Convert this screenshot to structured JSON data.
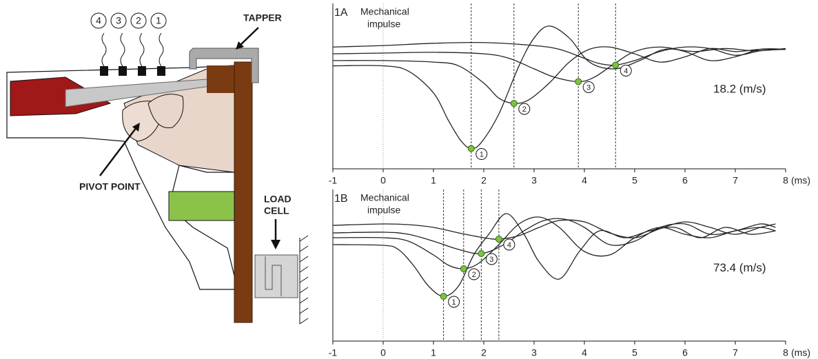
{
  "diagram": {
    "sensors": [
      "4",
      "3",
      "2",
      "1"
    ],
    "tapper": "TAPPER",
    "pivot": "PIVOT POINT",
    "load_cell": [
      "LOAD",
      "CELL"
    ]
  },
  "chart_data": [
    {
      "type": "line",
      "panel": "1A",
      "annotation": [
        "Mechanical",
        "impulse"
      ],
      "speed": "18.2 (m/s)",
      "xlabel": "(ms)",
      "xlim": [
        -1,
        8
      ],
      "xticks": [
        -1,
        0,
        1,
        2,
        3,
        4,
        5,
        6,
        7,
        8
      ],
      "ylim": [
        -1.6,
        0.6
      ],
      "impulse_x": 0,
      "marker_color": "#7dc242",
      "series": [
        {
          "color": "#222222",
          "x": [
            -1,
            0,
            0.5,
            1,
            1.3,
            1.55,
            1.75,
            1.95,
            2.3,
            2.7,
            3,
            3.3,
            3.7,
            4.1,
            4.6,
            5.1,
            5.6,
            6.2,
            6.8,
            7.4,
            8
          ],
          "values": [
            -0.23,
            -0.23,
            -0.3,
            -0.59,
            -0.96,
            -1.23,
            -1.33,
            -1.25,
            -0.87,
            -0.23,
            0.14,
            0.3,
            0.14,
            -0.18,
            -0.27,
            -0.16,
            -0.01,
            -0.04,
            0,
            -0.03,
            0
          ]
        },
        {
          "color": "#222222",
          "x": [
            -1,
            0,
            1,
            1.5,
            2,
            2.3,
            2.6,
            2.9,
            3.3,
            3.7,
            4.1,
            4.5,
            5,
            5.5,
            6,
            6.5,
            7,
            7.5,
            8
          ],
          "values": [
            -0.16,
            -0.16,
            -0.18,
            -0.23,
            -0.46,
            -0.66,
            -0.73,
            -0.68,
            -0.46,
            -0.18,
            -0.01,
            0.02,
            -0.07,
            -0.18,
            -0.11,
            0,
            -0.04,
            -0.01,
            -0.01
          ]
        },
        {
          "color": "#222222",
          "x": [
            -1,
            0,
            1,
            2,
            2.5,
            3,
            3.4,
            3.88,
            4.2,
            4.6,
            5,
            5.5,
            6,
            6.5,
            7,
            7.5,
            8
          ],
          "values": [
            -0.07,
            -0.06,
            -0.05,
            -0.07,
            -0.13,
            -0.27,
            -0.38,
            -0.44,
            -0.38,
            -0.2,
            -0.04,
            0.02,
            -0.04,
            -0.16,
            -0.11,
            -0.01,
            -0.01
          ]
        },
        {
          "color": "#222222",
          "x": [
            -1,
            0,
            1,
            2,
            3,
            3.5,
            4,
            4.3,
            4.62,
            5,
            5.5,
            6,
            6.5,
            7,
            7.5,
            8
          ],
          "values": [
            0.02,
            0.04,
            0.07,
            0.08,
            0.04,
            -0.01,
            -0.13,
            -0.2,
            -0.22,
            -0.16,
            -0.04,
            0.02,
            0,
            -0.09,
            -0.03,
            -0.01
          ]
        }
      ],
      "markers": [
        {
          "x": 1.75,
          "y": -1.33,
          "label": "1"
        },
        {
          "x": 2.6,
          "y": -0.73,
          "label": "2"
        },
        {
          "x": 3.88,
          "y": -0.44,
          "label": "3"
        },
        {
          "x": 4.62,
          "y": -0.22,
          "label": "4"
        }
      ]
    },
    {
      "type": "line",
      "panel": "1B",
      "annotation": [
        "Mechanical",
        "impulse"
      ],
      "speed": "73.4 (m/s)",
      "xlabel": "(ms)",
      "xlim": [
        -1,
        8
      ],
      "xticks": [
        -1,
        0,
        1,
        2,
        3,
        4,
        5,
        6,
        7,
        8
      ],
      "ylim": [
        -1.6,
        0.6
      ],
      "impulse_x": 0,
      "marker_color": "#7dc242",
      "series": [
        {
          "color": "#222222",
          "x": [
            -1,
            0,
            0.3,
            0.6,
            0.9,
            1.2,
            1.5,
            1.8,
            2.1,
            2.45,
            2.8,
            3.1,
            3.5,
            3.9,
            4.3,
            4.8,
            5.3,
            5.8,
            6.3,
            6.8,
            7.3,
            7.8
          ],
          "values": [
            -0.2,
            -0.21,
            -0.27,
            -0.5,
            -0.8,
            -0.95,
            -0.8,
            -0.35,
            -0.05,
            0.25,
            -0.05,
            -0.45,
            -0.7,
            -0.3,
            0,
            -0.1,
            0,
            0.05,
            -0.1,
            0.05,
            -0.05,
            0
          ]
        },
        {
          "color": "#222222",
          "x": [
            -1,
            0,
            0.5,
            1,
            1.3,
            1.6,
            1.9,
            2.3,
            2.7,
            3.1,
            3.5,
            4,
            4.5,
            5,
            5.5,
            6,
            6.5,
            7,
            7.5,
            7.8
          ],
          "values": [
            -0.1,
            -0.1,
            -0.15,
            -0.35,
            -0.5,
            -0.55,
            -0.47,
            -0.2,
            0.1,
            0.2,
            0.05,
            -0.3,
            -0.35,
            -0.1,
            0.05,
            -0.05,
            -0.1,
            0,
            0.05,
            0
          ]
        },
        {
          "color": "#222222",
          "x": [
            -1,
            0,
            0.5,
            1,
            1.5,
            1.95,
            2.4,
            2.8,
            3.2,
            3.6,
            4,
            4.5,
            5,
            5.5,
            6,
            6.5,
            7,
            7.5,
            7.8
          ],
          "values": [
            -0.03,
            -0.02,
            -0.05,
            -0.15,
            -0.27,
            -0.33,
            -0.2,
            0,
            0.15,
            0.17,
            0.05,
            -0.2,
            -0.15,
            0.05,
            0.1,
            -0.05,
            0,
            0.1,
            0.05
          ]
        },
        {
          "color": "#222222",
          "x": [
            -1,
            0,
            0.5,
            1,
            1.5,
            2,
            2.3,
            2.7,
            3.1,
            3.5,
            4,
            4.5,
            5,
            5.5,
            6,
            6.5,
            7,
            7.5,
            7.8
          ],
          "values": [
            0.08,
            0.1,
            0.09,
            0.05,
            -0.03,
            -0.1,
            -0.12,
            -0.07,
            0.05,
            0.15,
            0.13,
            -0.03,
            -0.1,
            0.03,
            0.13,
            0.05,
            -0.05,
            0.05,
            0.1
          ]
        }
      ],
      "markers": [
        {
          "x": 1.2,
          "y": -0.95,
          "label": "1"
        },
        {
          "x": 1.6,
          "y": -0.55,
          "label": "2"
        },
        {
          "x": 1.95,
          "y": -0.33,
          "label": "3"
        },
        {
          "x": 2.3,
          "y": -0.12,
          "label": "4"
        }
      ]
    }
  ]
}
